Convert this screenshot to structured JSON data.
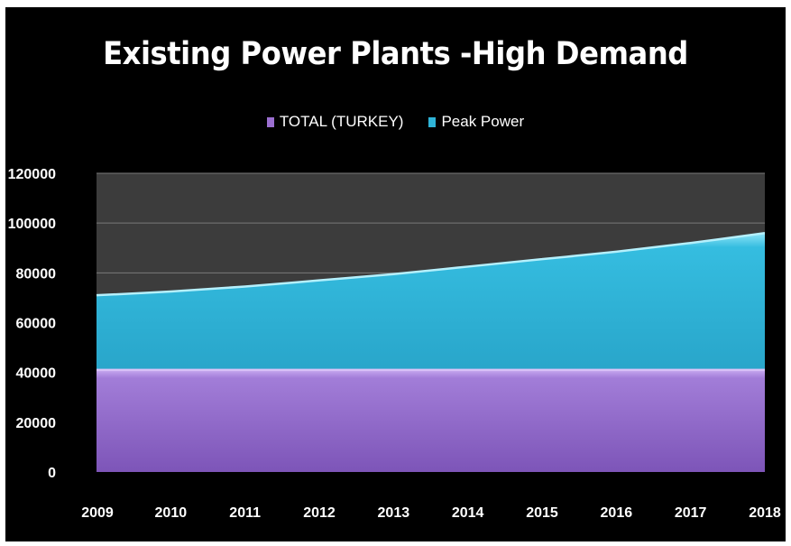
{
  "chart_data": {
    "type": "area",
    "stacked": false,
    "title": "Existing Power Plants -High Demand",
    "x": [
      2009,
      2010,
      2011,
      2012,
      2013,
      2014,
      2015,
      2016,
      2017,
      2018
    ],
    "x_tick_labels": [
      "2009",
      "2010",
      "2011",
      "2012",
      "2013",
      "2014",
      "2015",
      "2016",
      "2017",
      "2018"
    ],
    "ylim": [
      0,
      120000
    ],
    "y_ticks": [
      0,
      20000,
      40000,
      60000,
      80000,
      100000,
      120000
    ],
    "y_tick_labels": [
      "0",
      "20000",
      "40000",
      "60000",
      "80000",
      "100000",
      "120000"
    ],
    "grid": true,
    "legend_position": "top",
    "series": [
      {
        "name": "TOTAL (TURKEY)",
        "color": "#9b6fd0",
        "values": [
          41000,
          41000,
          41000,
          41000,
          41000,
          41000,
          41000,
          41000,
          41000,
          41000
        ]
      },
      {
        "name": "Peak Power",
        "color": "#2fb4d8",
        "values": [
          71000,
          72500,
          74500,
          77000,
          79500,
          82500,
          85500,
          88500,
          92000,
          96000
        ]
      }
    ],
    "plot_background": "#3c3c3c",
    "page_background": "#000000"
  }
}
